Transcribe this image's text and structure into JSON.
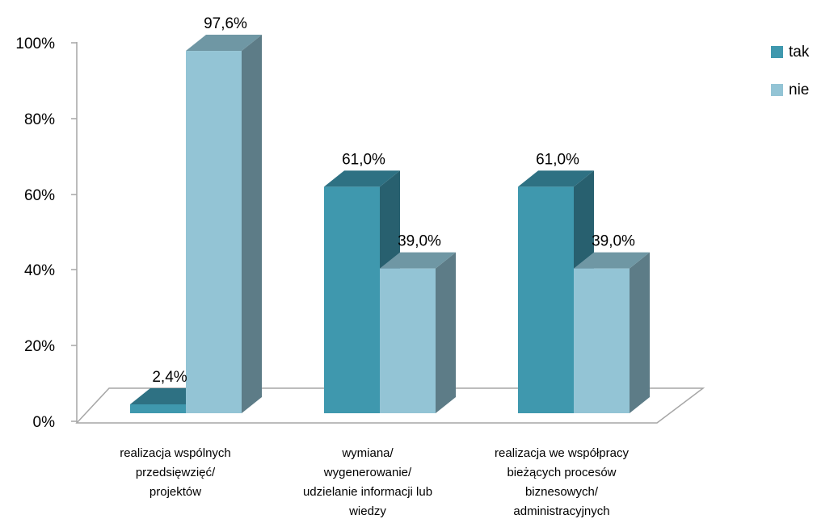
{
  "chart_data": {
    "type": "bar",
    "title": "",
    "xlabel": "",
    "ylabel": "",
    "ylim": [
      0,
      100
    ],
    "y_ticks": [
      "0%",
      "20%",
      "40%",
      "60%",
      "80%",
      "100%"
    ],
    "categories": [
      [
        "realizacja wspólnych",
        "przedsięwzięć/",
        "projektów"
      ],
      [
        "wymiana/",
        "wygenerowanie/",
        "udzielanie informacji lub",
        "wiedzy"
      ],
      [
        "realizacja we współpracy",
        "bieżących procesów",
        "biznesowych/",
        "administracyjnych"
      ]
    ],
    "series": [
      {
        "name": "tak",
        "values": [
          2.4,
          61.0,
          61.0
        ],
        "labels": [
          "2,4%",
          "61,0%",
          "61,0%"
        ]
      },
      {
        "name": "nie",
        "values": [
          97.6,
          39.0,
          39.0
        ],
        "labels": [
          "97,6%",
          "39,0%",
          "39,0%"
        ]
      }
    ],
    "legend_position": "right",
    "grid": false,
    "style": "3d-clustered-column"
  },
  "colors": {
    "tak": {
      "front": "#3f98ae",
      "top": "#2e7183",
      "side": "#28606f"
    },
    "nie": {
      "front": "#93c4d5",
      "top": "#6f97a4",
      "side": "#5d7c87"
    },
    "axis": "#a6a6a6"
  }
}
